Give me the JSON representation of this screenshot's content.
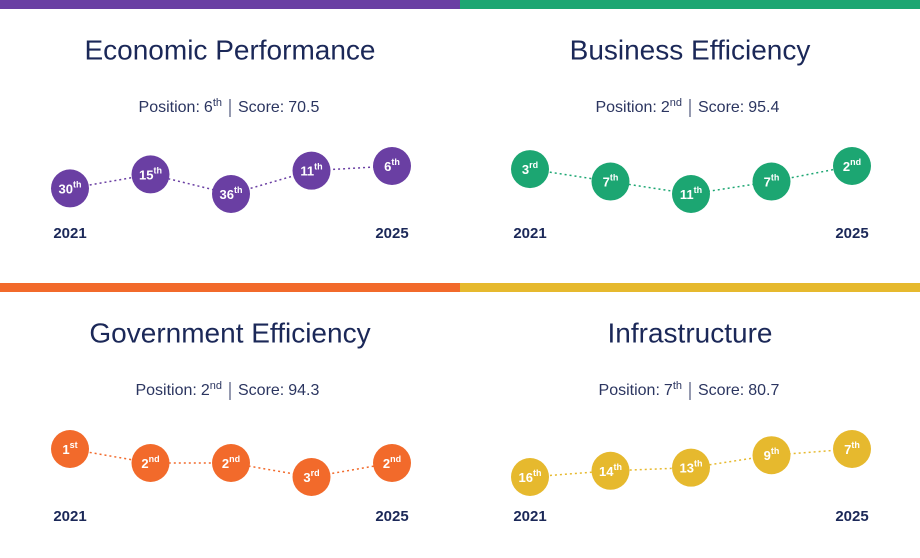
{
  "chart_data": [
    {
      "type": "rank-line",
      "title": "Economic Performance",
      "position_label": "Position:",
      "position": "6th",
      "score_label": "Score:",
      "score": 70.5,
      "categories": [
        "2021",
        null,
        null,
        null,
        "2025"
      ],
      "values": [
        30,
        15,
        36,
        11,
        6
      ],
      "value_labels": [
        "30th",
        "15th",
        "36th",
        "11th",
        "6th"
      ],
      "ylim": [
        36,
        6
      ],
      "color": "#6a3fa3"
    },
    {
      "type": "rank-line",
      "title": "Business Efficiency",
      "position_label": "Position:",
      "position": "2nd",
      "score_label": "Score:",
      "score": 95.4,
      "categories": [
        "2021",
        null,
        null,
        null,
        "2025"
      ],
      "values": [
        3,
        7,
        11,
        7,
        2
      ],
      "value_labels": [
        "3rd",
        "7th",
        "11th",
        "7th",
        "2nd"
      ],
      "ylim": [
        11,
        2
      ],
      "color": "#1ca672"
    },
    {
      "type": "rank-line",
      "title": "Government Efficiency",
      "position_label": "Position:",
      "position": "2nd",
      "score_label": "Score:",
      "score": 94.3,
      "categories": [
        "2021",
        null,
        null,
        null,
        "2025"
      ],
      "values": [
        1,
        2,
        2,
        3,
        2
      ],
      "value_labels": [
        "1st",
        "2nd",
        "2nd",
        "3rd",
        "2nd"
      ],
      "ylim": [
        3,
        1
      ],
      "color": "#f26a2b"
    },
    {
      "type": "rank-line",
      "title": "Infrastructure",
      "position_label": "Position:",
      "position": "7th",
      "score_label": "Score:",
      "score": 80.7,
      "categories": [
        "2021",
        null,
        null,
        null,
        "2025"
      ],
      "values": [
        16,
        14,
        13,
        9,
        7
      ],
      "value_labels": [
        "16th",
        "14th",
        "13th",
        "9th",
        "7th"
      ],
      "ylim": [
        16,
        7
      ],
      "color": "#e6b92e"
    }
  ]
}
